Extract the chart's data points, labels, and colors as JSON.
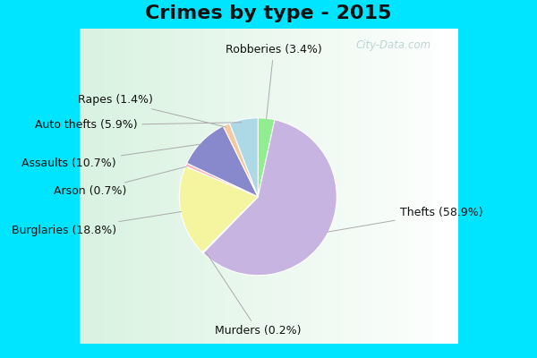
{
  "title": "Crimes by type - 2015",
  "labels": [
    "Robberies",
    "Thefts",
    "Murders",
    "Burglaries",
    "Arson",
    "Assaults",
    "Rapes",
    "Auto thefts"
  ],
  "percentages": [
    3.4,
    58.9,
    0.2,
    18.8,
    0.7,
    10.7,
    1.4,
    5.9
  ],
  "colors": [
    "#90ee90",
    "#c8b4e0",
    "#c8b4e0",
    "#f5f5a0",
    "#ffb6c1",
    "#8888cc",
    "#f5c8a0",
    "#add8e6"
  ],
  "outer_background": "#00e5ff",
  "title_fontsize": 16,
  "label_fontsize": 9,
  "watermark": "City-Data.com"
}
